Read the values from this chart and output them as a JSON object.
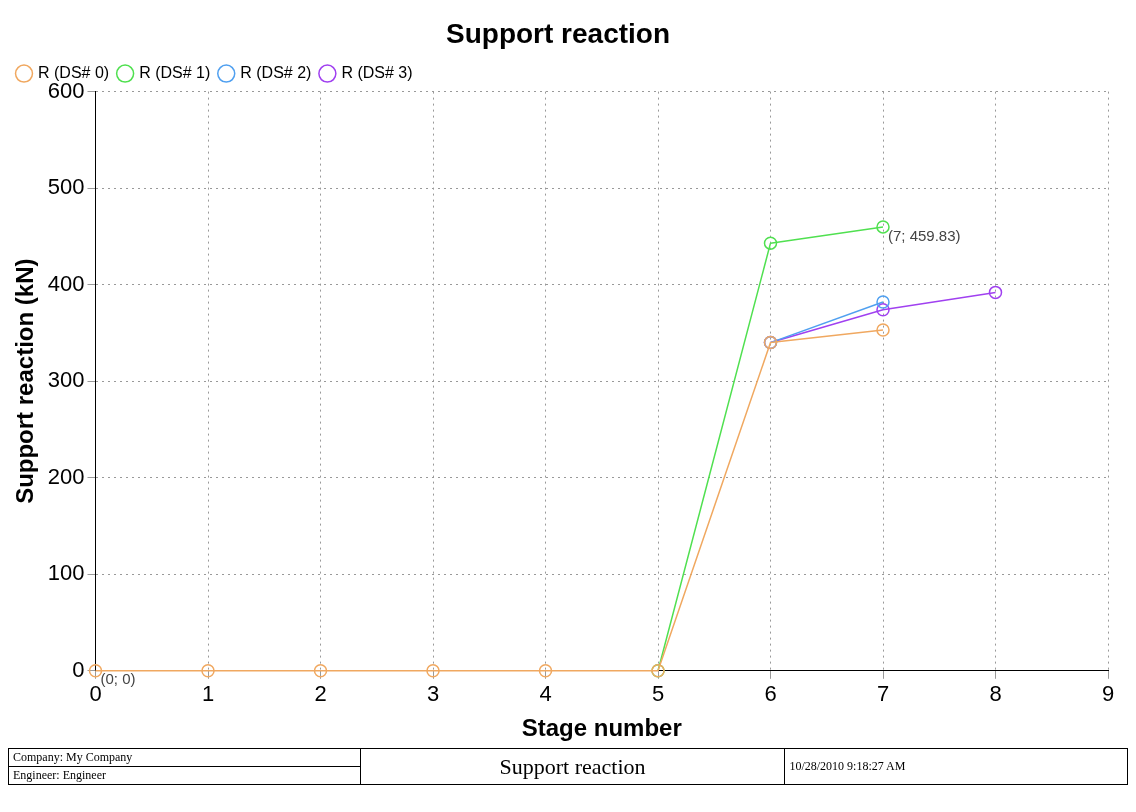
{
  "chart_data": {
    "type": "line",
    "title": "Support reaction",
    "xlabel": "Stage number",
    "ylabel": "Support reaction (kN)",
    "x": [
      0,
      1,
      2,
      3,
      4,
      5,
      6,
      7,
      8
    ],
    "series": [
      {
        "name": "R (DS# 0)",
        "color": "#f0a860",
        "values": [
          0,
          0,
          0,
          0,
          0,
          0,
          340,
          353,
          null
        ]
      },
      {
        "name": "R (DS# 1)",
        "color": "#50e050",
        "values": [
          null,
          null,
          null,
          null,
          null,
          0,
          443,
          459.83,
          null
        ]
      },
      {
        "name": "R (DS# 2)",
        "color": "#50a0f0",
        "values": [
          null,
          null,
          null,
          null,
          null,
          null,
          340,
          382,
          null
        ]
      },
      {
        "name": "R (DS# 3)",
        "color": "#a040f0",
        "values": [
          null,
          null,
          null,
          null,
          null,
          null,
          340,
          374,
          392
        ]
      }
    ],
    "xlim": [
      0,
      9
    ],
    "xticks": [
      0,
      1,
      2,
      3,
      4,
      5,
      6,
      7,
      8,
      9
    ],
    "ylim": [
      0,
      600
    ],
    "yticks": [
      0,
      100,
      200,
      300,
      400,
      500,
      600
    ],
    "grid": true,
    "legend": "top left",
    "marker": "circle",
    "line_style": "solid",
    "annotations": [
      {
        "text": "(0; 0)",
        "x": 0,
        "y": 0
      },
      {
        "text": "(7; 459.83)",
        "x": 7,
        "y": 459.83
      },
      "Company: My Company",
      "Engineer: Engineer",
      "Support reaction",
      "10/28/2010 9:18:27 AM"
    ]
  }
}
